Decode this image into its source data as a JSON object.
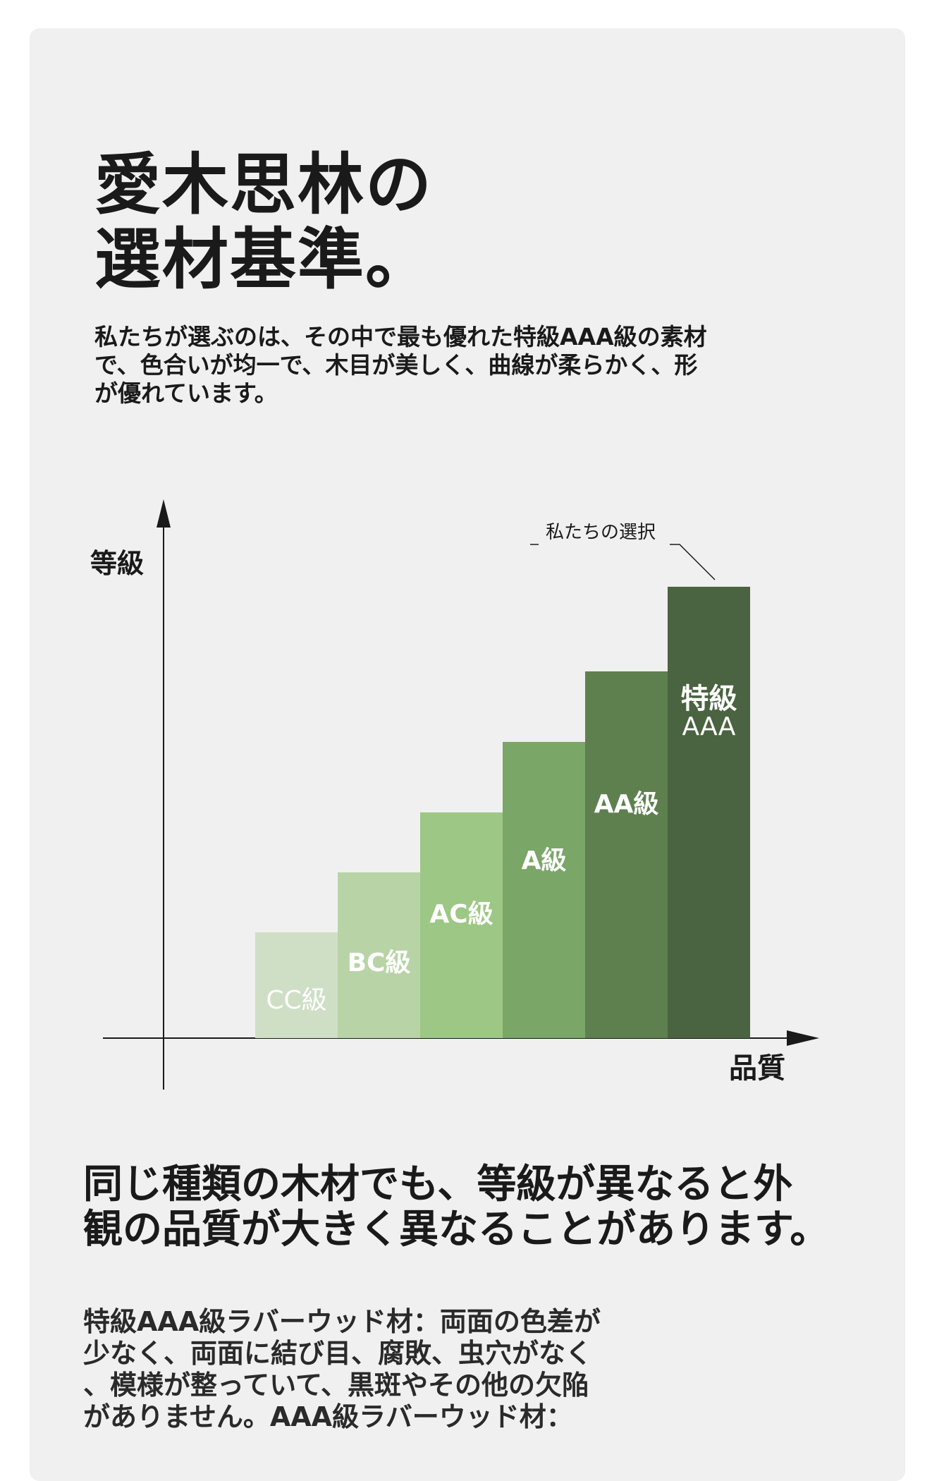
{
  "heading": {
    "line1": "愛木思林の",
    "line2": "選材基準。"
  },
  "intro": {
    "line1": "私たちが選ぶのは、その中で最も優れた特級AAA級の素材",
    "line2": "で、色合いが均一で、木目が美しく、曲線が柔らかく、形",
    "line3": "が優れています。"
  },
  "chart_data": {
    "type": "bar",
    "categories": [
      "CC級",
      "BC級",
      "AC級",
      "A級",
      "AA級",
      "特級AAA"
    ],
    "values": [
      1.5,
      2.35,
      3.2,
      4.2,
      5.2,
      6.4
    ],
    "ylabel": "等級",
    "xlabel": "品質",
    "annotation": "私たちの選択",
    "annotation_target": "特級AAA",
    "colors": [
      "#cfdfc5",
      "#b8d4a6",
      "#9dc784",
      "#7aa668",
      "#5e804e",
      "#4a6340"
    ],
    "label_colors": [
      "#ffffff",
      "#ffffff",
      "#ffffff",
      "#ffffff",
      "#ffffff",
      "#ffffff"
    ],
    "legend": "none",
    "grid": false
  },
  "section": {
    "heading_line1": "同じ種類の木材でも、等級が異なると外",
    "heading_line2": "観の品質が大きく異なることがあります。",
    "body_line1": "特級AAA級ラバーウッド材：両面の色差が",
    "body_line2": "少なく、両面に結び目、腐敗、虫穴がなく",
    "body_line3": "、模様が整っていて、黒斑やその他の欠陥",
    "body_line4": "がありません。AAA級ラバーウッド材："
  }
}
